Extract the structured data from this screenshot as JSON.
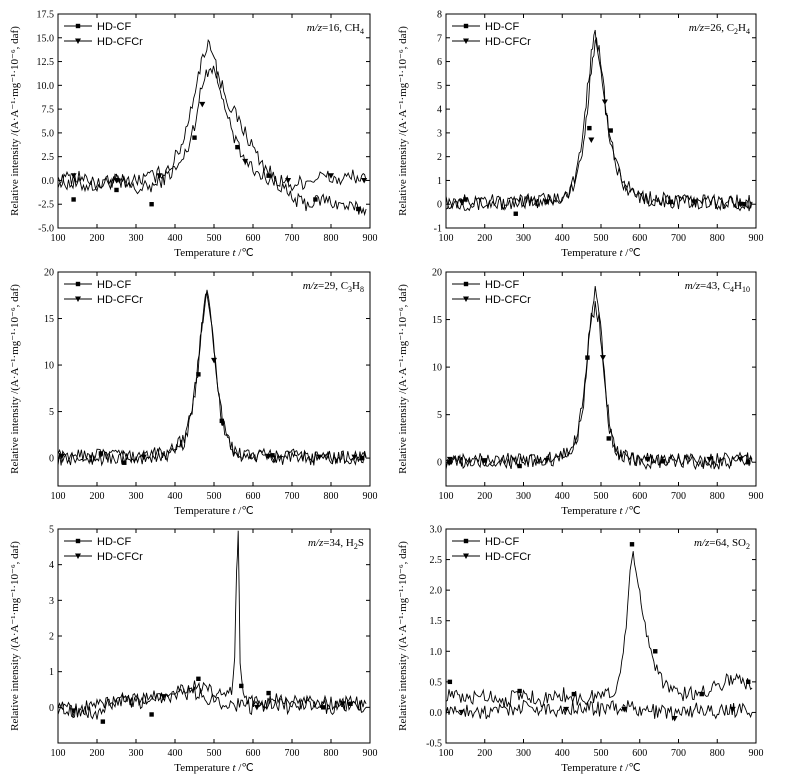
{
  "chart_data": [
    {
      "type": "line",
      "annotation_mz": "m/z",
      "annotation_rest": "=16, CH",
      "annotation_sub": "4",
      "xlabel": "Temperature",
      "xunit_var": "t",
      "xunit": " /℃",
      "ylabel": "Relative intensity /(A·A⁻¹·mg⁻¹·10⁻⁶, daf)",
      "xlim": [
        100,
        900
      ],
      "ylim": [
        -5.0,
        17.5
      ],
      "xticks": [
        100,
        200,
        300,
        400,
        500,
        600,
        700,
        800,
        900
      ],
      "yticks": [
        -5.0,
        -2.5,
        0.0,
        2.5,
        5.0,
        7.5,
        10.0,
        12.5,
        15.0,
        17.5
      ],
      "ytick_labels": [
        "-5.0",
        "-2.5",
        "0.0",
        "2.5",
        "5.0",
        "7.5",
        "10.0",
        "12.5",
        "15.0",
        "17.5"
      ],
      "legend": "top-left",
      "series": [
        {
          "name": "HD-CF",
          "marker": "square",
          "x": [
            100,
            150,
            200,
            250,
            300,
            350,
            380,
            410,
            430,
            450,
            465,
            480,
            495,
            510,
            525,
            540,
            560,
            580,
            600,
            620,
            640,
            660,
            680,
            700,
            740,
            780,
            820,
            860,
            890
          ],
          "y": [
            0.0,
            -0.5,
            -0.5,
            0.0,
            -1.0,
            -0.5,
            0.5,
            1.5,
            3.0,
            6.0,
            9.0,
            11.5,
            12.0,
            11.0,
            9.5,
            8.0,
            6.5,
            5.0,
            3.5,
            2.0,
            1.0,
            0.0,
            -1.0,
            -2.0,
            -2.5,
            -2.0,
            -2.5,
            -3.0,
            -3.0
          ],
          "markers_x": [
            140,
            250,
            340,
            450,
            560,
            640,
            760,
            870
          ],
          "markers_y": [
            -2.0,
            -1.0,
            -2.5,
            4.5,
            3.5,
            0.5,
            -2.0,
            -3.0
          ]
        },
        {
          "name": "HD-CFCr",
          "marker": "triangle-down",
          "x": [
            100,
            150,
            200,
            250,
            300,
            350,
            390,
            420,
            440,
            460,
            475,
            485,
            495,
            505,
            520,
            540,
            560,
            580,
            600,
            620,
            650,
            680,
            700,
            740,
            780,
            820,
            860,
            890
          ],
          "y": [
            0.0,
            0.5,
            -0.5,
            0.0,
            0.0,
            0.5,
            1.5,
            4.0,
            7.5,
            11.0,
            13.5,
            14.5,
            14.0,
            12.0,
            8.5,
            6.0,
            3.5,
            2.0,
            1.0,
            0.5,
            0.0,
            0.0,
            -0.5,
            0.0,
            0.5,
            0.0,
            0.5,
            0.0
          ],
          "markers_x": [
            140,
            250,
            360,
            470,
            580,
            690,
            800,
            885
          ],
          "markers_y": [
            0.5,
            0.0,
            0.5,
            8.0,
            2.0,
            0.0,
            0.5,
            0.0
          ]
        }
      ]
    },
    {
      "type": "line",
      "annotation_mz": "m/z",
      "annotation_rest": "=26, C",
      "annotation_sub": "2",
      "annotation_rest2": "H",
      "annotation_sub2": "4",
      "xlabel": "Temperature",
      "xunit_var": "t",
      "xunit": " /℃",
      "ylabel": "Relative intensity /(A·A⁻¹·mg⁻¹·10⁻⁶, daf)",
      "xlim": [
        100,
        900
      ],
      "ylim": [
        -1,
        8
      ],
      "xticks": [
        100,
        200,
        300,
        400,
        500,
        600,
        700,
        800,
        900
      ],
      "yticks": [
        -1,
        0,
        1,
        2,
        3,
        4,
        5,
        6,
        7,
        8
      ],
      "ytick_labels": [
        "-1",
        "0",
        "1",
        "2",
        "3",
        "4",
        "5",
        "6",
        "7",
        "8"
      ],
      "legend": "top-left",
      "series": [
        {
          "name": "HD-CF",
          "marker": "square",
          "x": [
            100,
            200,
            300,
            380,
            420,
            440,
            455,
            465,
            475,
            485,
            495,
            505,
            515,
            530,
            545,
            560,
            580,
            620,
            700,
            800,
            890
          ],
          "y": [
            0.1,
            0.0,
            0.1,
            0.2,
            0.5,
            1.2,
            2.5,
            4.0,
            5.8,
            6.9,
            6.5,
            5.3,
            3.5,
            2.3,
            1.5,
            0.9,
            0.5,
            0.2,
            0.1,
            0.1,
            0.0
          ],
          "markers_x": [
            150,
            280,
            470,
            525,
            680,
            870
          ],
          "markers_y": [
            0.2,
            -0.4,
            3.2,
            3.1,
            0.1,
            0.0
          ]
        },
        {
          "name": "HD-CFCr",
          "marker": "triangle-down",
          "x": [
            100,
            200,
            300,
            380,
            420,
            440,
            455,
            465,
            475,
            485,
            490,
            500,
            510,
            520,
            535,
            550,
            570,
            600,
            650,
            700,
            800,
            890
          ],
          "y": [
            0.1,
            0.1,
            0.1,
            0.2,
            0.6,
            1.5,
            3.0,
            4.8,
            6.3,
            7.2,
            6.8,
            5.8,
            4.3,
            3.0,
            1.8,
            1.0,
            0.6,
            0.3,
            0.2,
            0.1,
            0.1,
            0.1
          ],
          "markers_x": [
            140,
            360,
            475,
            510,
            740,
            860
          ],
          "markers_y": [
            0.1,
            0.1,
            2.7,
            4.3,
            0.1,
            0.0
          ]
        }
      ]
    },
    {
      "type": "line",
      "annotation_mz": "m/z",
      "annotation_rest": "=29, C",
      "annotation_sub": "3",
      "annotation_rest2": "H",
      "annotation_sub2": "8",
      "xlabel": "Temperature",
      "xunit_var": "t",
      "xunit": " /℃",
      "ylabel": "Relative intensity /(A·A⁻¹·mg⁻¹·10⁻⁶, daf)",
      "xlim": [
        100,
        900
      ],
      "ylim": [
        -3,
        20
      ],
      "xticks": [
        100,
        200,
        300,
        400,
        500,
        600,
        700,
        800,
        900
      ],
      "yticks": [
        0,
        5,
        10,
        15,
        20
      ],
      "ytick_labels": [
        "0",
        "5",
        "10",
        "15",
        "20"
      ],
      "legend": "top-left",
      "series": [
        {
          "name": "HD-CF",
          "marker": "square",
          "x": [
            100,
            200,
            300,
            380,
            420,
            440,
            455,
            465,
            475,
            482,
            490,
            500,
            510,
            520,
            535,
            550,
            570,
            620,
            700,
            800,
            890
          ],
          "y": [
            0.0,
            0.0,
            0.0,
            0.5,
            1.5,
            4.0,
            8.0,
            12.5,
            16.5,
            17.8,
            16.5,
            12.0,
            7.5,
            4.0,
            1.8,
            0.8,
            0.3,
            0.1,
            0.0,
            0.0,
            0.0
          ],
          "markers_x": [
            210,
            270,
            460,
            520,
            650,
            880
          ],
          "markers_y": [
            0.5,
            -0.5,
            9.0,
            4.0,
            0.3,
            0.0
          ]
        },
        {
          "name": "HD-CFCr",
          "marker": "triangle-down",
          "x": [
            100,
            200,
            300,
            380,
            420,
            440,
            455,
            465,
            475,
            485,
            492,
            502,
            512,
            522,
            535,
            550,
            570,
            620,
            700,
            800,
            890
          ],
          "y": [
            0.2,
            0.2,
            0.1,
            0.5,
            1.8,
            4.5,
            8.5,
            13.0,
            16.8,
            17.2,
            15.5,
            11.0,
            7.0,
            3.8,
            1.8,
            0.9,
            0.4,
            0.2,
            0.2,
            0.1,
            0.1
          ],
          "markers_x": [
            110,
            320,
            500,
            640,
            770,
            860
          ],
          "markers_y": [
            0.2,
            0.1,
            10.5,
            0.2,
            0.1,
            0.1
          ]
        }
      ]
    },
    {
      "type": "line",
      "annotation_mz": "m/z",
      "annotation_rest": "=43, C",
      "annotation_sub": "4",
      "annotation_rest2": "H",
      "annotation_sub2": "10",
      "xlabel": "Temperature",
      "xunit_var": "t",
      "xunit": " /℃",
      "ylabel": "Relative intensity /(A·A⁻¹·mg⁻¹·10⁻⁶, daf)",
      "xlim": [
        100,
        900
      ],
      "ylim": [
        -2.5,
        20
      ],
      "xticks": [
        100,
        200,
        300,
        400,
        500,
        600,
        700,
        800,
        900
      ],
      "yticks": [
        0,
        5,
        10,
        15,
        20
      ],
      "ytick_labels": [
        "0",
        "5",
        "10",
        "15",
        "20"
      ],
      "legend": "top-left",
      "series": [
        {
          "name": "HD-CF",
          "marker": "square",
          "x": [
            100,
            200,
            300,
            380,
            420,
            440,
            455,
            465,
            475,
            485,
            492,
            502,
            512,
            522,
            535,
            550,
            570,
            620,
            700,
            800,
            890
          ],
          "y": [
            0.0,
            0.0,
            0.0,
            0.3,
            1.0,
            3.0,
            6.5,
            11.0,
            15.5,
            18.2,
            16.8,
            12.5,
            7.5,
            3.5,
            1.5,
            0.6,
            0.2,
            0.0,
            0.0,
            0.0,
            0.0
          ],
          "markers_x": [
            110,
            200,
            290,
            465,
            520,
            660,
            880
          ],
          "markers_y": [
            0.0,
            0.2,
            -0.4,
            11.0,
            2.5,
            0.1,
            0.0
          ]
        },
        {
          "name": "HD-CFCr",
          "marker": "triangle-down",
          "x": [
            100,
            200,
            300,
            380,
            420,
            440,
            455,
            465,
            475,
            485,
            495,
            505,
            515,
            525,
            540,
            555,
            575,
            620,
            700,
            800,
            890
          ],
          "y": [
            0.3,
            0.2,
            0.2,
            0.4,
            1.2,
            3.5,
            7.0,
            11.5,
            15.0,
            16.5,
            15.0,
            11.0,
            6.5,
            3.0,
            1.3,
            0.6,
            0.4,
            0.3,
            0.3,
            0.3,
            0.3
          ],
          "markers_x": [
            110,
            360,
            505,
            620,
            780,
            860
          ],
          "markers_y": [
            0.3,
            0.2,
            11.0,
            0.3,
            0.3,
            0.3
          ]
        }
      ]
    },
    {
      "type": "line",
      "annotation_mz": "m/z",
      "annotation_rest": "=34, H",
      "annotation_sub": "2",
      "annotation_rest2": "S",
      "xlabel": "Temperature",
      "xunit_var": "t",
      "xunit": " /℃",
      "ylabel": "Relative intensity /(A·A⁻¹·mg⁻¹·10⁻⁶, daf)",
      "xlim": [
        100,
        900
      ],
      "ylim": [
        -1,
        5
      ],
      "xticks": [
        100,
        200,
        300,
        400,
        500,
        600,
        700,
        800,
        900
      ],
      "yticks": [
        0,
        1,
        2,
        3,
        4,
        5
      ],
      "ytick_labels": [
        "0",
        "1",
        "2",
        "3",
        "4",
        "5"
      ],
      "legend": "top-left",
      "series": [
        {
          "name": "HD-CF",
          "marker": "square",
          "x": [
            100,
            150,
            200,
            250,
            300,
            350,
            400,
            450,
            500,
            530,
            545,
            553,
            558,
            562,
            567,
            575,
            590,
            620,
            660,
            700,
            750,
            800,
            850,
            890
          ],
          "y": [
            0.0,
            -0.1,
            -0.2,
            0.2,
            0.1,
            0.3,
            0.5,
            0.6,
            0.4,
            0.3,
            0.5,
            1.5,
            3.8,
            4.8,
            1.2,
            0.5,
            0.2,
            0.1,
            0.2,
            0.1,
            0.2,
            0.1,
            0.1,
            0.1
          ],
          "markers_x": [
            215,
            340,
            460,
            570,
            640,
            780,
            850
          ],
          "markers_y": [
            -0.4,
            -0.2,
            0.8,
            0.6,
            0.4,
            0.0,
            0.1
          ]
        },
        {
          "name": "HD-CFCr",
          "marker": "triangle-down",
          "x": [
            100,
            150,
            200,
            250,
            300,
            350,
            400,
            450,
            500,
            550,
            600,
            650,
            700,
            750,
            800,
            850,
            890
          ],
          "y": [
            0.0,
            -0.1,
            0.1,
            0.2,
            0.2,
            0.3,
            0.3,
            0.4,
            0.2,
            0.1,
            0.0,
            0.1,
            0.0,
            0.1,
            0.0,
            0.1,
            0.0
          ],
          "markers_x": [
            140,
            370,
            610,
            830
          ],
          "markers_y": [
            -0.1,
            0.3,
            0.0,
            0.1
          ]
        }
      ]
    },
    {
      "type": "line",
      "annotation_mz": "m/z",
      "annotation_rest": "=64, SO",
      "annotation_sub": "2",
      "xlabel": "Temperature",
      "xunit_var": "t",
      "xunit": " /℃",
      "ylabel": "Relative intensity /(A·A⁻¹·mg⁻¹·10⁻⁶, daf)",
      "xlim": [
        100,
        900
      ],
      "ylim": [
        -0.5,
        3.0
      ],
      "xticks": [
        100,
        200,
        300,
        400,
        500,
        600,
        700,
        800,
        900
      ],
      "yticks": [
        -0.5,
        0.0,
        0.5,
        1.0,
        1.5,
        2.0,
        2.5,
        3.0
      ],
      "ytick_labels": [
        "-0.5",
        "0.0",
        "0.5",
        "1.0",
        "1.5",
        "2.0",
        "2.5",
        "3.0"
      ],
      "legend": "top-left",
      "series": [
        {
          "name": "HD-CF",
          "marker": "square",
          "x": [
            100,
            150,
            200,
            250,
            300,
            350,
            400,
            450,
            500,
            530,
            550,
            565,
            575,
            583,
            590,
            600,
            610,
            625,
            640,
            660,
            680,
            700,
            740,
            780,
            820,
            850,
            870,
            890
          ],
          "y": [
            0.3,
            0.2,
            0.3,
            0.2,
            0.3,
            0.2,
            0.3,
            0.2,
            0.3,
            0.3,
            0.6,
            1.5,
            2.4,
            2.7,
            2.2,
            1.9,
            1.6,
            1.1,
            0.8,
            0.5,
            0.4,
            0.3,
            0.3,
            0.4,
            0.5,
            0.6,
            0.5,
            0.4
          ],
          "markers_x": [
            110,
            290,
            430,
            580,
            640,
            760,
            880
          ],
          "markers_y": [
            0.5,
            0.35,
            0.3,
            2.75,
            1.0,
            0.3,
            0.5
          ]
        },
        {
          "name": "HD-CFCr",
          "marker": "triangle-down",
          "x": [
            100,
            150,
            200,
            250,
            300,
            350,
            400,
            450,
            500,
            550,
            600,
            650,
            700,
            750,
            800,
            850,
            890
          ],
          "y": [
            0.0,
            0.05,
            0.0,
            0.05,
            0.1,
            0.05,
            0.05,
            0.1,
            0.05,
            0.1,
            0.05,
            0.0,
            0.0,
            0.05,
            0.0,
            0.05,
            0.0
          ],
          "markers_x": [
            140,
            410,
            560,
            690,
            840
          ],
          "markers_y": [
            0.0,
            0.05,
            0.05,
            -0.1,
            0.05
          ]
        }
      ]
    }
  ]
}
